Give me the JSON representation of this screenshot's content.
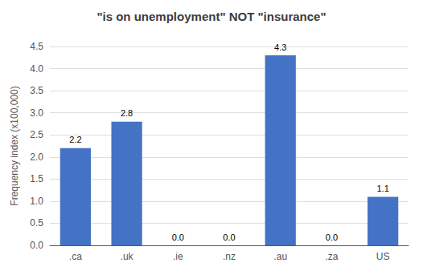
{
  "chart_data": {
    "type": "bar",
    "title": "\"is on unemployment\" NOT \"insurance\"",
    "categories": [
      ".ca",
      ".uk",
      ".ie",
      ".nz",
      ".au",
      ".za",
      "US"
    ],
    "values": [
      2.2,
      2.8,
      0.0,
      0.0,
      4.3,
      0.0,
      1.1
    ],
    "value_labels": [
      "2.2",
      "2.8",
      "0.0",
      "0.0",
      "4.3",
      "0.0",
      "1.1"
    ],
    "color": "#4472C4",
    "ylabel": "Frequency index (x100,000)",
    "ylim": [
      0,
      4.5
    ],
    "yticks": [
      {
        "value": 0.0,
        "label": "0.0"
      },
      0.5,
      {
        "value": 1.0,
        "label": "1.0"
      },
      1.5,
      {
        "value": 2.0,
        "label": "2.0"
      },
      2.5,
      {
        "value": 3.0,
        "label": "3.0"
      },
      3.5,
      {
        "value": 4.0,
        "label": "4.0"
      },
      4.5
    ],
    "grid": true,
    "data_labels": true
  }
}
